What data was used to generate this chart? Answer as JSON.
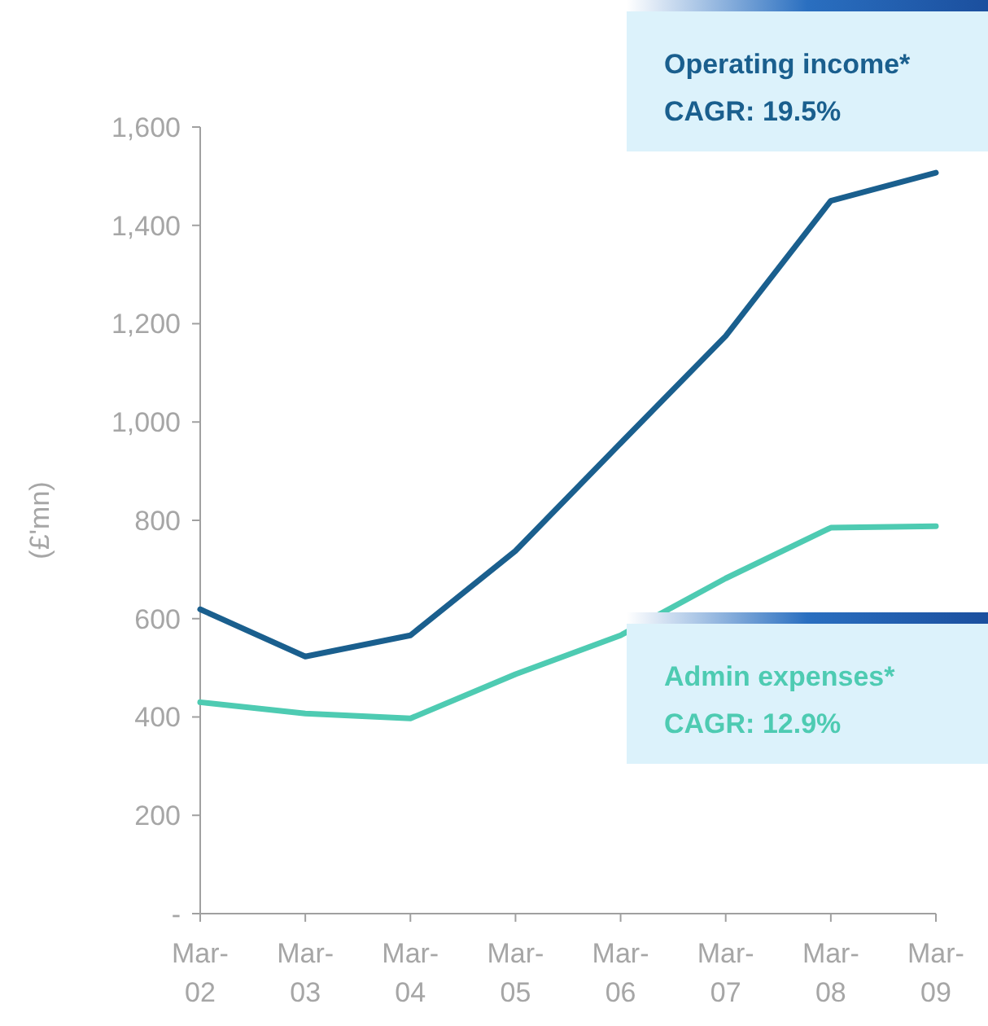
{
  "chart_data": {
    "type": "line",
    "ylabel": "(£'mn)",
    "categories": [
      "Mar-02",
      "Mar-03",
      "Mar-04",
      "Mar-05",
      "Mar-06",
      "Mar-07",
      "Mar-08",
      "Mar-09"
    ],
    "series": [
      {
        "name": "Operating income*",
        "color": "#1a5f8e",
        "values": [
          619,
          523,
          566,
          738,
          957,
          1175,
          1450,
          1507
        ]
      },
      {
        "name": "Admin expenses*",
        "color": "#4ecbb2",
        "values": [
          430,
          407,
          397,
          487,
          566,
          682,
          785,
          788
        ]
      }
    ],
    "annotations": [
      "CAGR: 19.5%",
      "CAGR: 12.9%"
    ],
    "ylim": [
      0,
      1600
    ],
    "yticks": [
      {
        "value": 0,
        "label": "-"
      },
      {
        "value": 200,
        "label": "200"
      },
      {
        "value": 400,
        "label": "400"
      },
      {
        "value": 600,
        "label": "600"
      },
      {
        "value": 800,
        "label": "800"
      },
      {
        "value": 1000,
        "label": "1,000"
      },
      {
        "value": 1200,
        "label": "1,200"
      },
      {
        "value": 1400,
        "label": "1,400"
      },
      {
        "value": 1600,
        "label": "1,600"
      }
    ],
    "grid": false,
    "legend": "right",
    "marker": "none",
    "line_style": "solid"
  }
}
